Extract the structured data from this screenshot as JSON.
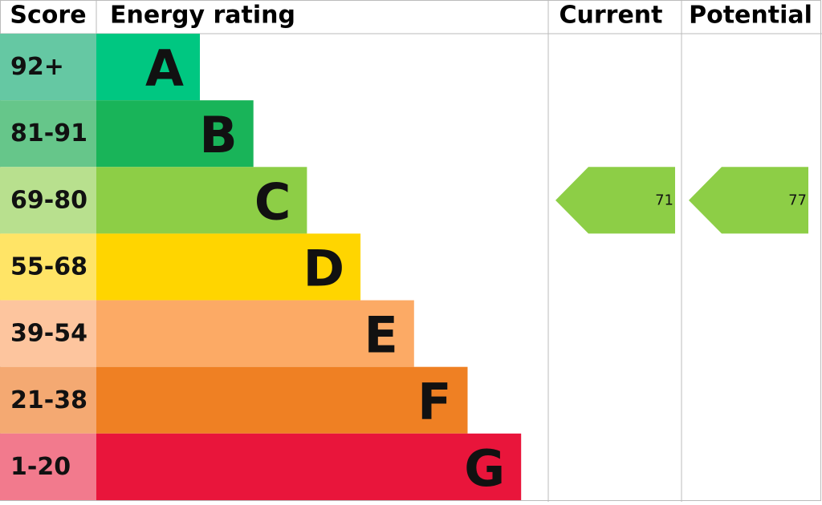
{
  "header": {
    "score": "Score",
    "rating": "Energy rating",
    "current": "Current",
    "potential": "Potential"
  },
  "bands": [
    {
      "score": "92+",
      "letter": "A",
      "color": "#00c781",
      "score_color": "#65c8a3"
    },
    {
      "score": "81-91",
      "letter": "B",
      "color": "#19b459",
      "score_color": "#66c68a"
    },
    {
      "score": "69-80",
      "letter": "C",
      "color": "#8dce46",
      "score_color": "#b8e08e"
    },
    {
      "score": "55-68",
      "letter": "D",
      "color": "#ffd500",
      "score_color": "#ffe466"
    },
    {
      "score": "39-54",
      "letter": "E",
      "color": "#fcaa65",
      "score_color": "#fdc59e"
    },
    {
      "score": "21-38",
      "letter": "F",
      "color": "#ef8023",
      "score_color": "#f4a972"
    },
    {
      "score": "1-20",
      "letter": "G",
      "color": "#e9153b",
      "score_color": "#f27a8d"
    }
  ],
  "current": {
    "value": 71
  },
  "potential": {
    "value": 77
  }
}
